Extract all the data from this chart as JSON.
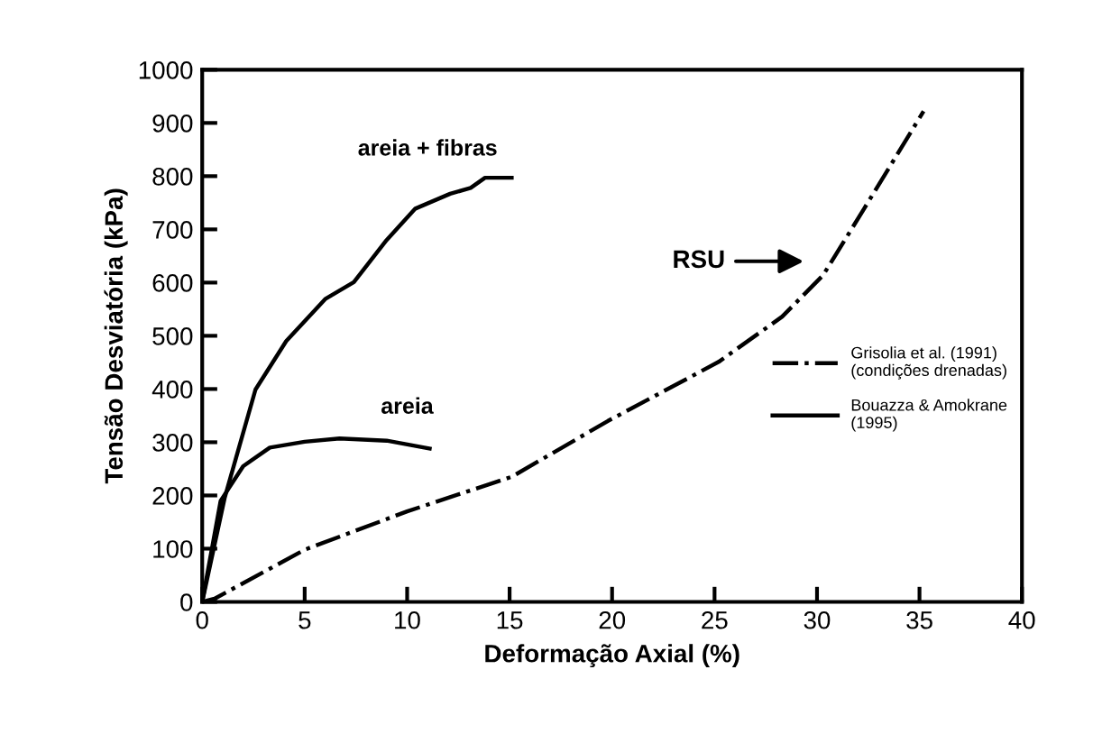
{
  "chart_data": {
    "type": "line",
    "xlabel": "Deformação Axial (%)",
    "ylabel": "Tensão Desviatória (kPa)",
    "xlim": [
      0,
      40
    ],
    "ylim": [
      0,
      1000
    ],
    "xticks": [
      0,
      5,
      10,
      15,
      20,
      25,
      30,
      35,
      40
    ],
    "yticks": [
      0,
      100,
      200,
      300,
      400,
      500,
      600,
      700,
      800,
      900,
      1000
    ],
    "grid": false,
    "legend": "right",
    "marker": "none",
    "series": [
      {
        "name": "Grisolia et al. (1991)\n(condições drenadas)",
        "color": "#000000",
        "line_style": "dashdot",
        "x": [
          0,
          0.6,
          5,
          10,
          15.1,
          19.8,
          25.2,
          28.3,
          30.3,
          32.3,
          35.2
        ],
        "values": [
          0,
          6,
          98,
          170,
          235,
          340,
          451,
          536,
          614,
          739,
          922
        ]
      },
      {
        "name": "Bouazza & Amokrane\n(1995)",
        "color": "#000000",
        "line_style": "solid",
        "x": [
          0,
          1.1,
          2.6,
          4.1,
          6.0,
          7.4,
          9.0,
          10.4,
          12.1,
          13.1,
          13.8,
          15.1
        ],
        "values": [
          0,
          196,
          399,
          490,
          569,
          601,
          680,
          739,
          767,
          778,
          797,
          797
        ]
      },
      {
        "color": "#000000",
        "line_style": "solid",
        "x": [
          0,
          0.9,
          2,
          3.3,
          5,
          6.7,
          9,
          11.1
        ],
        "values": [
          0,
          190,
          255,
          290,
          301,
          307,
          303,
          288
        ]
      }
    ],
    "annotations": [
      "areia + fibras",
      "areia",
      "RSU"
    ]
  }
}
